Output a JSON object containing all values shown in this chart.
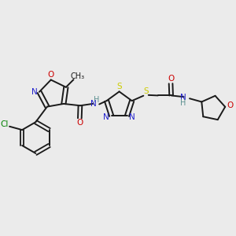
{
  "bg_color": "#ebebeb",
  "bond_color": "#1a1a1a",
  "colors": {
    "N": "#2020cc",
    "O": "#cc0000",
    "S": "#cccc00",
    "Cl": "#008000",
    "C": "#1a1a1a",
    "H": "#5c9090"
  },
  "figsize": [
    3.0,
    3.0
  ],
  "dpi": 100
}
